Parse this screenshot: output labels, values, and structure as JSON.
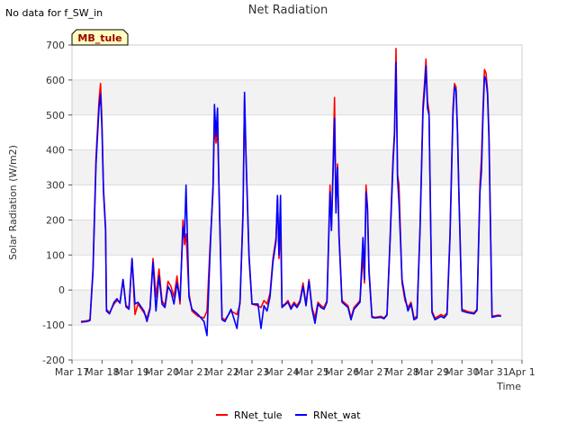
{
  "nodata_note": "No data for f_SW_in",
  "badge": "MB_tule",
  "chart_data": {
    "type": "line",
    "title": "Net Radiation",
    "xlabel": "Time",
    "ylabel": "Solar Radiation (W/m2)",
    "xlim": [
      17,
      32
    ],
    "ylim": [
      -200,
      700
    ],
    "x_ticks": [
      {
        "value": 17,
        "label": "Mar 17"
      },
      {
        "value": 18,
        "label": "Mar 18"
      },
      {
        "value": 19,
        "label": "Mar 19"
      },
      {
        "value": 20,
        "label": "Mar 20"
      },
      {
        "value": 21,
        "label": "Mar 21"
      },
      {
        "value": 22,
        "label": "Mar 22"
      },
      {
        "value": 23,
        "label": "Mar 23"
      },
      {
        "value": 24,
        "label": "Mar 24"
      },
      {
        "value": 25,
        "label": "Mar 25"
      },
      {
        "value": 26,
        "label": "Mar 26"
      },
      {
        "value": 27,
        "label": "Mar 27"
      },
      {
        "value": 28,
        "label": "Mar 28"
      },
      {
        "value": 29,
        "label": "Mar 29"
      },
      {
        "value": 30,
        "label": "Mar 30"
      },
      {
        "value": 31,
        "label": "Mar 31"
      },
      {
        "value": 32,
        "label": "Apr 1"
      }
    ],
    "y_ticks": [
      -200,
      -100,
      0,
      100,
      200,
      300,
      400,
      500,
      600,
      700
    ],
    "series": [
      {
        "name": "RNet_tule",
        "color": "#ff0000",
        "points": [
          [
            17.3,
            -90
          ],
          [
            17.5,
            -88
          ],
          [
            17.6,
            -85
          ],
          [
            17.7,
            60
          ],
          [
            17.8,
            380
          ],
          [
            17.9,
            540
          ],
          [
            17.95,
            590
          ],
          [
            18.0,
            480
          ],
          [
            18.05,
            290
          ],
          [
            18.12,
            180
          ],
          [
            18.15,
            -55
          ],
          [
            18.25,
            -65
          ],
          [
            18.4,
            -40
          ],
          [
            18.5,
            -30
          ],
          [
            18.6,
            -35
          ],
          [
            18.7,
            30
          ],
          [
            18.8,
            -45
          ],
          [
            18.9,
            -50
          ],
          [
            19.0,
            90
          ],
          [
            19.1,
            -70
          ],
          [
            19.2,
            -40
          ],
          [
            19.4,
            -65
          ],
          [
            19.5,
            -80
          ],
          [
            19.6,
            -50
          ],
          [
            19.7,
            90
          ],
          [
            19.8,
            -20
          ],
          [
            19.9,
            60
          ],
          [
            20.0,
            -30
          ],
          [
            20.1,
            -45
          ],
          [
            20.2,
            25
          ],
          [
            20.3,
            10
          ],
          [
            20.4,
            -20
          ],
          [
            20.5,
            40
          ],
          [
            20.6,
            -40
          ],
          [
            20.7,
            200
          ],
          [
            20.75,
            130
          ],
          [
            20.8,
            160
          ],
          [
            20.9,
            -10
          ],
          [
            21.0,
            -60
          ],
          [
            21.2,
            -75
          ],
          [
            21.4,
            -80
          ],
          [
            21.5,
            -60
          ],
          [
            21.6,
            120
          ],
          [
            21.7,
            280
          ],
          [
            21.75,
            480
          ],
          [
            21.8,
            420
          ],
          [
            21.85,
            460
          ],
          [
            21.9,
            300
          ],
          [
            22.0,
            -80
          ],
          [
            22.1,
            -85
          ],
          [
            22.3,
            -60
          ],
          [
            22.5,
            -70
          ],
          [
            22.6,
            -40
          ],
          [
            22.7,
            230
          ],
          [
            22.75,
            550
          ],
          [
            22.8,
            380
          ],
          [
            22.9,
            90
          ],
          [
            23.0,
            -40
          ],
          [
            23.2,
            -45
          ],
          [
            23.3,
            -50
          ],
          [
            23.4,
            -30
          ],
          [
            23.5,
            -40
          ],
          [
            23.6,
            -10
          ],
          [
            23.7,
            90
          ],
          [
            23.8,
            150
          ],
          [
            23.85,
            265
          ],
          [
            23.9,
            90
          ],
          [
            23.95,
            180
          ],
          [
            24.0,
            -45
          ],
          [
            24.1,
            -40
          ],
          [
            24.2,
            -30
          ],
          [
            24.3,
            -50
          ],
          [
            24.4,
            -35
          ],
          [
            24.5,
            -45
          ],
          [
            24.6,
            -30
          ],
          [
            24.7,
            20
          ],
          [
            24.8,
            -40
          ],
          [
            24.9,
            30
          ],
          [
            25.0,
            -50
          ],
          [
            25.1,
            -80
          ],
          [
            25.2,
            -35
          ],
          [
            25.3,
            -45
          ],
          [
            25.4,
            -50
          ],
          [
            25.5,
            -30
          ],
          [
            25.6,
            300
          ],
          [
            25.65,
            180
          ],
          [
            25.7,
            350
          ],
          [
            25.75,
            550
          ],
          [
            25.8,
            230
          ],
          [
            25.85,
            360
          ],
          [
            25.9,
            160
          ],
          [
            26.0,
            -30
          ],
          [
            26.2,
            -45
          ],
          [
            26.3,
            -80
          ],
          [
            26.4,
            -50
          ],
          [
            26.5,
            -40
          ],
          [
            26.6,
            -30
          ],
          [
            26.7,
            100
          ],
          [
            26.75,
            20
          ],
          [
            26.8,
            300
          ],
          [
            26.85,
            240
          ],
          [
            26.9,
            60
          ],
          [
            27.0,
            -75
          ],
          [
            27.1,
            -78
          ],
          [
            27.3,
            -75
          ],
          [
            27.4,
            -80
          ],
          [
            27.5,
            -70
          ],
          [
            27.6,
            140
          ],
          [
            27.7,
            380
          ],
          [
            27.75,
            450
          ],
          [
            27.8,
            690
          ],
          [
            27.85,
            330
          ],
          [
            27.9,
            300
          ],
          [
            28.0,
            20
          ],
          [
            28.1,
            -30
          ],
          [
            28.2,
            -50
          ],
          [
            28.3,
            -35
          ],
          [
            28.4,
            -80
          ],
          [
            28.5,
            -75
          ],
          [
            28.6,
            180
          ],
          [
            28.7,
            530
          ],
          [
            28.75,
            590
          ],
          [
            28.8,
            660
          ],
          [
            28.85,
            540
          ],
          [
            28.9,
            510
          ],
          [
            29.0,
            -60
          ],
          [
            29.1,
            -80
          ],
          [
            29.2,
            -75
          ],
          [
            29.3,
            -70
          ],
          [
            29.4,
            -75
          ],
          [
            29.5,
            -65
          ],
          [
            29.6,
            160
          ],
          [
            29.7,
            520
          ],
          [
            29.75,
            590
          ],
          [
            29.8,
            580
          ],
          [
            29.85,
            460
          ],
          [
            29.9,
            270
          ],
          [
            30.0,
            -55
          ],
          [
            30.2,
            -62
          ],
          [
            30.4,
            -65
          ],
          [
            30.5,
            -55
          ],
          [
            30.6,
            300
          ],
          [
            30.65,
            380
          ],
          [
            30.7,
            520
          ],
          [
            30.75,
            630
          ],
          [
            30.8,
            620
          ],
          [
            30.85,
            570
          ],
          [
            30.9,
            450
          ],
          [
            31.0,
            -75
          ],
          [
            31.2,
            -72
          ],
          [
            31.3,
            -73
          ]
        ]
      },
      {
        "name": "RNet_wat",
        "color": "#0000ff",
        "points": [
          [
            17.3,
            -92
          ],
          [
            17.5,
            -90
          ],
          [
            17.6,
            -87
          ],
          [
            17.7,
            50
          ],
          [
            17.8,
            360
          ],
          [
            17.9,
            520
          ],
          [
            17.95,
            560
          ],
          [
            18.0,
            460
          ],
          [
            18.05,
            280
          ],
          [
            18.12,
            170
          ],
          [
            18.15,
            -60
          ],
          [
            18.25,
            -68
          ],
          [
            18.4,
            -35
          ],
          [
            18.5,
            -25
          ],
          [
            18.6,
            -38
          ],
          [
            18.7,
            30
          ],
          [
            18.8,
            -48
          ],
          [
            18.9,
            -55
          ],
          [
            19.0,
            90
          ],
          [
            19.1,
            -40
          ],
          [
            19.2,
            -35
          ],
          [
            19.4,
            -60
          ],
          [
            19.5,
            -90
          ],
          [
            19.6,
            -55
          ],
          [
            19.7,
            80
          ],
          [
            19.8,
            -60
          ],
          [
            19.9,
            40
          ],
          [
            20.0,
            -40
          ],
          [
            20.1,
            -50
          ],
          [
            20.2,
            10
          ],
          [
            20.3,
            -5
          ],
          [
            20.4,
            -40
          ],
          [
            20.5,
            20
          ],
          [
            20.6,
            -30
          ],
          [
            20.7,
            180
          ],
          [
            20.75,
            150
          ],
          [
            20.8,
            300
          ],
          [
            20.9,
            -20
          ],
          [
            21.0,
            -55
          ],
          [
            21.2,
            -70
          ],
          [
            21.4,
            -90
          ],
          [
            21.5,
            -130
          ],
          [
            21.6,
            100
          ],
          [
            21.7,
            300
          ],
          [
            21.75,
            530
          ],
          [
            21.8,
            440
          ],
          [
            21.85,
            520
          ],
          [
            21.9,
            290
          ],
          [
            22.0,
            -85
          ],
          [
            22.1,
            -90
          ],
          [
            22.3,
            -55
          ],
          [
            22.5,
            -110
          ],
          [
            22.6,
            -30
          ],
          [
            22.7,
            210
          ],
          [
            22.75,
            565
          ],
          [
            22.8,
            390
          ],
          [
            22.9,
            100
          ],
          [
            23.0,
            -40
          ],
          [
            23.2,
            -40
          ],
          [
            23.3,
            -110
          ],
          [
            23.4,
            -45
          ],
          [
            23.5,
            -60
          ],
          [
            23.6,
            -20
          ],
          [
            23.7,
            80
          ],
          [
            23.8,
            140
          ],
          [
            23.85,
            270
          ],
          [
            23.9,
            100
          ],
          [
            23.95,
            270
          ],
          [
            24.0,
            -50
          ],
          [
            24.1,
            -42
          ],
          [
            24.2,
            -35
          ],
          [
            24.3,
            -55
          ],
          [
            24.4,
            -40
          ],
          [
            24.5,
            -50
          ],
          [
            24.6,
            -35
          ],
          [
            24.7,
            10
          ],
          [
            24.8,
            -45
          ],
          [
            24.9,
            25
          ],
          [
            25.0,
            -55
          ],
          [
            25.1,
            -95
          ],
          [
            25.2,
            -40
          ],
          [
            25.3,
            -50
          ],
          [
            25.4,
            -55
          ],
          [
            25.5,
            -35
          ],
          [
            25.6,
            280
          ],
          [
            25.65,
            170
          ],
          [
            25.7,
            330
          ],
          [
            25.75,
            490
          ],
          [
            25.8,
            220
          ],
          [
            25.85,
            350
          ],
          [
            25.9,
            150
          ],
          [
            26.0,
            -35
          ],
          [
            26.2,
            -50
          ],
          [
            26.3,
            -85
          ],
          [
            26.4,
            -55
          ],
          [
            26.5,
            -45
          ],
          [
            26.6,
            -35
          ],
          [
            26.7,
            150
          ],
          [
            26.75,
            30
          ],
          [
            26.8,
            280
          ],
          [
            26.85,
            230
          ],
          [
            26.9,
            50
          ],
          [
            27.0,
            -78
          ],
          [
            27.1,
            -80
          ],
          [
            27.3,
            -78
          ],
          [
            27.4,
            -82
          ],
          [
            27.5,
            -72
          ],
          [
            27.6,
            130
          ],
          [
            27.7,
            360
          ],
          [
            27.75,
            440
          ],
          [
            27.8,
            650
          ],
          [
            27.85,
            320
          ],
          [
            27.9,
            250
          ],
          [
            28.0,
            30
          ],
          [
            28.1,
            -20
          ],
          [
            28.2,
            -60
          ],
          [
            28.3,
            -40
          ],
          [
            28.4,
            -85
          ],
          [
            28.5,
            -80
          ],
          [
            28.6,
            170
          ],
          [
            28.7,
            510
          ],
          [
            28.75,
            570
          ],
          [
            28.8,
            640
          ],
          [
            28.85,
            520
          ],
          [
            28.9,
            500
          ],
          [
            29.0,
            -65
          ],
          [
            29.1,
            -85
          ],
          [
            29.2,
            -80
          ],
          [
            29.3,
            -75
          ],
          [
            29.4,
            -80
          ],
          [
            29.5,
            -70
          ],
          [
            29.6,
            150
          ],
          [
            29.7,
            500
          ],
          [
            29.75,
            580
          ],
          [
            29.8,
            570
          ],
          [
            29.85,
            450
          ],
          [
            29.9,
            260
          ],
          [
            30.0,
            -60
          ],
          [
            30.2,
            -65
          ],
          [
            30.4,
            -68
          ],
          [
            30.5,
            -58
          ],
          [
            30.6,
            280
          ],
          [
            30.65,
            340
          ],
          [
            30.7,
            500
          ],
          [
            30.75,
            610
          ],
          [
            30.8,
            600
          ],
          [
            30.85,
            560
          ],
          [
            30.9,
            430
          ],
          [
            31.0,
            -78
          ],
          [
            31.2,
            -74
          ],
          [
            31.3,
            -75
          ]
        ]
      }
    ],
    "legend_position": "bottom-center"
  }
}
